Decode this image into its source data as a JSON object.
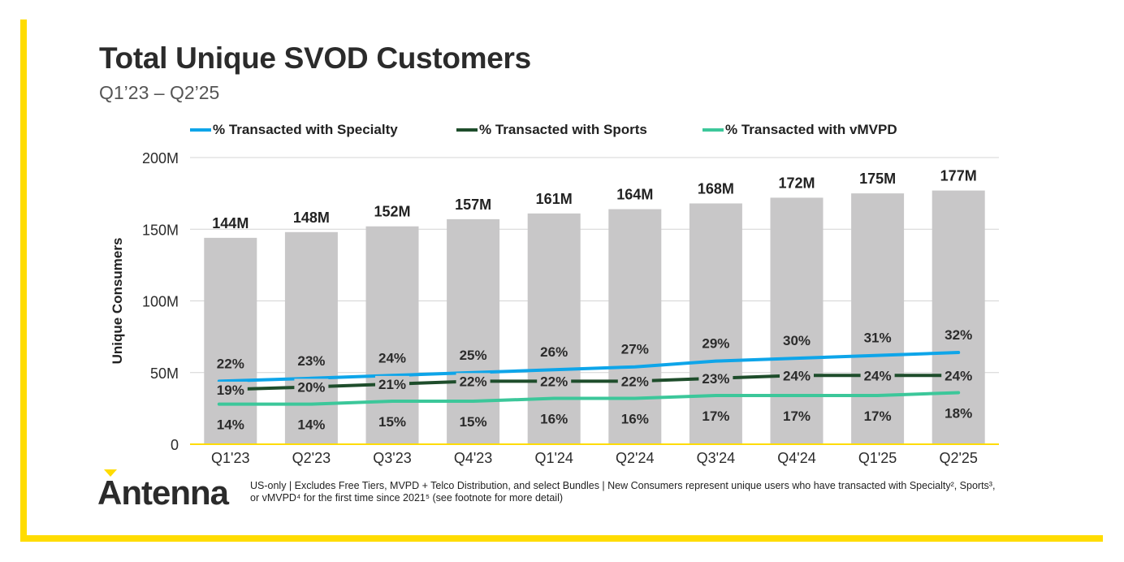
{
  "title": "Total Unique SVOD Customers",
  "subtitle": "Q1’23 – Q2’25",
  "logo_text": "Antenna",
  "footnote": "US-only | Excludes Free Tiers, MVPD + Telco Distribution, and select Bundles | New Consumers represent unique users who have transacted with Specialty², Sports³, or vMVPD⁴ for the first time since 2021⁵ (see footnote for more detail)",
  "colors": {
    "accent": "#FFDC00",
    "bar": "#C8C7C8",
    "specialty": "#0EA5E9",
    "sports": "#1E4D2B",
    "vmvpd": "#3CC79A"
  },
  "chart_data": {
    "type": "bar",
    "ylabel": "Unique Consumers",
    "ylim": [
      0,
      200
    ],
    "y_ticks": [
      "0",
      "50M",
      "100M",
      "150M",
      "200M"
    ],
    "y_tick_values": [
      0,
      50,
      100,
      150,
      200
    ],
    "grid": true,
    "legend_position": "top",
    "categories": [
      "Q1'23",
      "Q2'23",
      "Q3'23",
      "Q4'23",
      "Q1'24",
      "Q2'24",
      "Q3'24",
      "Q4'24",
      "Q1'25",
      "Q2'25"
    ],
    "bars": {
      "values": [
        144,
        148,
        152,
        157,
        161,
        164,
        168,
        172,
        175,
        177
      ],
      "labels": [
        "144M",
        "148M",
        "152M",
        "157M",
        "161M",
        "164M",
        "168M",
        "172M",
        "175M",
        "177M"
      ]
    },
    "series": [
      {
        "name": "% Transacted with Specialty",
        "color": "#0EA5E9",
        "values": [
          22,
          23,
          24,
          25,
          26,
          27,
          29,
          30,
          31,
          32
        ],
        "labels": [
          "22%",
          "23%",
          "24%",
          "25%",
          "26%",
          "27%",
          "29%",
          "30%",
          "31%",
          "32%"
        ]
      },
      {
        "name": "% Transacted with Sports",
        "color": "#1E4D2B",
        "values": [
          19,
          20,
          21,
          22,
          22,
          22,
          23,
          24,
          24,
          24
        ],
        "labels": [
          "19%",
          "20%",
          "21%",
          "22%",
          "22%",
          "22%",
          "23%",
          "24%",
          "24%",
          "24%"
        ]
      },
      {
        "name": "% Transacted with vMVPD",
        "color": "#3CC79A",
        "values": [
          14,
          14,
          15,
          15,
          16,
          16,
          17,
          17,
          17,
          18
        ],
        "labels": [
          "14%",
          "14%",
          "15%",
          "15%",
          "16%",
          "16%",
          "17%",
          "17%",
          "17%",
          "18%"
        ]
      }
    ]
  }
}
